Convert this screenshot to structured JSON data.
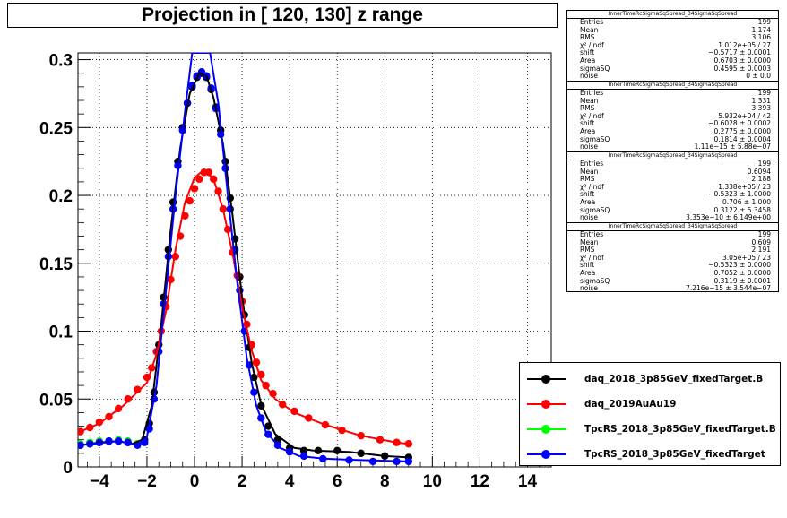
{
  "chart_data": {
    "type": "scatter",
    "title": "Projection in [ 120, 130] z range",
    "xlabel": "",
    "ylabel": "",
    "xlim": [
      -4.9,
      15.0
    ],
    "ylim": [
      0,
      0.305
    ],
    "x_ticks": [
      -4,
      -2,
      0,
      2,
      4,
      6,
      8,
      10,
      12,
      14
    ],
    "x_tick_labels": [
      "−4",
      "−2",
      "0",
      "2",
      "4",
      "6",
      "8",
      "10",
      "12",
      "14"
    ],
    "y_ticks": [
      0,
      0.05,
      0.1,
      0.15,
      0.2,
      0.25,
      0.3
    ],
    "y_tick_labels": [
      "0",
      "0.05",
      "0.1",
      "0.15",
      "0.2",
      "0.25",
      "0.3"
    ],
    "grid": true,
    "legend_position": "bottom-right",
    "series": [
      {
        "name": "daq_2018_3p85GeV_fixedTarget.B",
        "color": "#000000",
        "points": [
          [
            -4.8,
            0.016
          ],
          [
            -4.4,
            0.017
          ],
          [
            -4.0,
            0.018
          ],
          [
            -3.6,
            0.019
          ],
          [
            -3.2,
            0.019
          ],
          [
            -2.8,
            0.018
          ],
          [
            -2.4,
            0.017
          ],
          [
            -2.1,
            0.02
          ],
          [
            -1.9,
            0.032
          ],
          [
            -1.7,
            0.055
          ],
          [
            -1.5,
            0.09
          ],
          [
            -1.3,
            0.125
          ],
          [
            -1.1,
            0.16
          ],
          [
            -0.9,
            0.195
          ],
          [
            -0.7,
            0.225
          ],
          [
            -0.5,
            0.25
          ],
          [
            -0.3,
            0.268
          ],
          [
            -0.1,
            0.28
          ],
          [
            0.1,
            0.287
          ],
          [
            0.3,
            0.29
          ],
          [
            0.5,
            0.287
          ],
          [
            0.7,
            0.278
          ],
          [
            0.9,
            0.265
          ],
          [
            1.1,
            0.248
          ],
          [
            1.3,
            0.225
          ],
          [
            1.5,
            0.198
          ],
          [
            1.7,
            0.168
          ],
          [
            1.9,
            0.14
          ],
          [
            2.1,
            0.112
          ],
          [
            2.3,
            0.088
          ],
          [
            2.5,
            0.066
          ],
          [
            2.8,
            0.045
          ],
          [
            3.1,
            0.03
          ],
          [
            3.5,
            0.02
          ],
          [
            4.0,
            0.014
          ],
          [
            4.6,
            0.012
          ],
          [
            5.2,
            0.012
          ],
          [
            6.0,
            0.012
          ],
          [
            7.0,
            0.01
          ],
          [
            8.0,
            0.008
          ],
          [
            9.0,
            0.007
          ]
        ],
        "fit": [
          [
            -4.8,
            0.016
          ],
          [
            -4.0,
            0.018
          ],
          [
            -3.2,
            0.019
          ],
          [
            -2.6,
            0.017
          ],
          [
            -2.2,
            0.02
          ],
          [
            -1.8,
            0.045
          ],
          [
            -1.4,
            0.105
          ],
          [
            -1.0,
            0.175
          ],
          [
            -0.6,
            0.235
          ],
          [
            -0.2,
            0.275
          ],
          [
            0.2,
            0.29
          ],
          [
            0.5,
            0.288
          ],
          [
            0.8,
            0.272
          ],
          [
            1.2,
            0.238
          ],
          [
            1.6,
            0.185
          ],
          [
            2.0,
            0.125
          ],
          [
            2.4,
            0.077
          ],
          [
            2.8,
            0.046
          ],
          [
            3.4,
            0.024
          ],
          [
            4.2,
            0.014
          ],
          [
            5.0,
            0.012
          ],
          [
            6.5,
            0.011
          ],
          [
            8.0,
            0.008
          ],
          [
            9.0,
            0.007
          ]
        ]
      },
      {
        "name": "daq_2019AuAu19",
        "color": "#ff0000",
        "points": [
          [
            -4.8,
            0.026
          ],
          [
            -4.4,
            0.029
          ],
          [
            -4.0,
            0.033
          ],
          [
            -3.6,
            0.037
          ],
          [
            -3.2,
            0.043
          ],
          [
            -2.8,
            0.05
          ],
          [
            -2.4,
            0.057
          ],
          [
            -2.0,
            0.066
          ],
          [
            -1.8,
            0.073
          ],
          [
            -1.6,
            0.085
          ],
          [
            -1.4,
            0.1
          ],
          [
            -1.2,
            0.118
          ],
          [
            -1.0,
            0.138
          ],
          [
            -0.8,
            0.155
          ],
          [
            -0.6,
            0.17
          ],
          [
            -0.4,
            0.185
          ],
          [
            -0.2,
            0.196
          ],
          [
            0.0,
            0.205
          ],
          [
            0.2,
            0.212
          ],
          [
            0.4,
            0.217
          ],
          [
            0.6,
            0.217
          ],
          [
            0.8,
            0.212
          ],
          [
            1.0,
            0.203
          ],
          [
            1.2,
            0.19
          ],
          [
            1.4,
            0.175
          ],
          [
            1.6,
            0.158
          ],
          [
            1.8,
            0.141
          ],
          [
            2.0,
            0.122
          ],
          [
            2.2,
            0.105
          ],
          [
            2.4,
            0.09
          ],
          [
            2.6,
            0.077
          ],
          [
            2.8,
            0.068
          ],
          [
            3.0,
            0.06
          ],
          [
            3.3,
            0.054
          ],
          [
            3.7,
            0.046
          ],
          [
            4.2,
            0.041
          ],
          [
            4.8,
            0.036
          ],
          [
            5.5,
            0.031
          ],
          [
            6.2,
            0.027
          ],
          [
            7.0,
            0.023
          ],
          [
            7.8,
            0.02
          ],
          [
            8.5,
            0.018
          ],
          [
            9.0,
            0.017
          ]
        ],
        "fit": [
          [
            -4.8,
            0.026
          ],
          [
            -4.0,
            0.032
          ],
          [
            -3.0,
            0.045
          ],
          [
            -2.0,
            0.062
          ],
          [
            -1.6,
            0.083
          ],
          [
            -1.2,
            0.115
          ],
          [
            -0.8,
            0.16
          ],
          [
            -0.4,
            0.195
          ],
          [
            0.0,
            0.213
          ],
          [
            0.4,
            0.219
          ],
          [
            0.8,
            0.212
          ],
          [
            1.2,
            0.19
          ],
          [
            1.6,
            0.157
          ],
          [
            2.0,
            0.118
          ],
          [
            2.4,
            0.086
          ],
          [
            2.8,
            0.064
          ],
          [
            3.4,
            0.05
          ],
          [
            4.2,
            0.04
          ],
          [
            5.5,
            0.031
          ],
          [
            7.0,
            0.023
          ],
          [
            8.5,
            0.018
          ],
          [
            9.0,
            0.017
          ]
        ]
      },
      {
        "name": "TpcRS_2018_3p85GeV_fixedTarget.B",
        "color": "#00ff00",
        "points": [
          [
            -4.8,
            0.017
          ],
          [
            -4.4,
            0.018
          ],
          [
            -4.0,
            0.019
          ],
          [
            -3.6,
            0.019
          ],
          [
            -3.2,
            0.02
          ],
          [
            -2.8,
            0.019
          ],
          [
            -2.4,
            0.017
          ]
        ],
        "fit": []
      },
      {
        "name": "TpcRS_2018_3p85GeV_fixedTarget",
        "color": "#0000ff",
        "points": [
          [
            -4.8,
            0.016
          ],
          [
            -4.4,
            0.017
          ],
          [
            -4.0,
            0.018
          ],
          [
            -3.6,
            0.019
          ],
          [
            -3.2,
            0.019
          ],
          [
            -2.8,
            0.018
          ],
          [
            -2.4,
            0.016
          ],
          [
            -2.1,
            0.018
          ],
          [
            -1.9,
            0.028
          ],
          [
            -1.7,
            0.05
          ],
          [
            -1.5,
            0.085
          ],
          [
            -1.3,
            0.12
          ],
          [
            -1.1,
            0.155
          ],
          [
            -0.9,
            0.19
          ],
          [
            -0.7,
            0.222
          ],
          [
            -0.5,
            0.248
          ],
          [
            -0.3,
            0.268
          ],
          [
            -0.1,
            0.281
          ],
          [
            0.1,
            0.288
          ],
          [
            0.3,
            0.291
          ],
          [
            0.5,
            0.288
          ],
          [
            0.7,
            0.279
          ],
          [
            0.9,
            0.264
          ],
          [
            1.1,
            0.245
          ],
          [
            1.3,
            0.22
          ],
          [
            1.5,
            0.19
          ],
          [
            1.7,
            0.16
          ],
          [
            1.9,
            0.13
          ],
          [
            2.1,
            0.1
          ],
          [
            2.3,
            0.075
          ],
          [
            2.5,
            0.055
          ],
          [
            2.8,
            0.036
          ],
          [
            3.1,
            0.024
          ],
          [
            3.5,
            0.016
          ],
          [
            4.0,
            0.011
          ],
          [
            4.6,
            0.008
          ],
          [
            5.4,
            0.006
          ],
          [
            6.5,
            0.005
          ],
          [
            7.5,
            0.004
          ],
          [
            8.5,
            0.004
          ],
          [
            9.0,
            0.004
          ]
        ],
        "fit": [
          [
            -4.8,
            0.016
          ],
          [
            -3.2,
            0.019
          ],
          [
            -2.4,
            0.016
          ],
          [
            -2.0,
            0.022
          ],
          [
            -1.6,
            0.06
          ],
          [
            -1.2,
            0.13
          ],
          [
            -0.8,
            0.2
          ],
          [
            -0.4,
            0.262
          ],
          [
            -0.1,
            0.305
          ],
          [
            0.65,
            0.305
          ],
          [
            1.0,
            0.268
          ],
          [
            1.4,
            0.2
          ],
          [
            1.8,
            0.135
          ],
          [
            2.2,
            0.08
          ],
          [
            2.6,
            0.045
          ],
          [
            3.0,
            0.026
          ],
          [
            3.6,
            0.014
          ],
          [
            4.4,
            0.008
          ],
          [
            5.5,
            0.006
          ],
          [
            7.0,
            0.005
          ],
          [
            9.0,
            0.004
          ]
        ]
      }
    ]
  },
  "stats_boxes": [
    {
      "title": "InnerTimeRcSigmaSqSpread_34SigmaSqSpread",
      "rows": [
        {
          "label": "Entries",
          "value": "199"
        },
        {
          "label": "Mean",
          "value": "1.174"
        },
        {
          "label": "RMS",
          "value": "3.106"
        },
        {
          "label": "χ² / ndf",
          "value": "1.012e+05 / 27"
        },
        {
          "label": "shift",
          "value": "−0.5717 ± 0.0001"
        },
        {
          "label": "Area",
          "value": "0.6703 ± 0.0000"
        },
        {
          "label": "sigmaSQ",
          "value": "0.4595 ± 0.0003"
        },
        {
          "label": "noise",
          "value": "0 ± 0.0"
        }
      ]
    },
    {
      "title": "InnerTimeRcSigmaSqSpread_34SigmaSqSpread",
      "rows": [
        {
          "label": "Entries",
          "value": "199"
        },
        {
          "label": "Mean",
          "value": "1.331"
        },
        {
          "label": "RMS",
          "value": "3.393"
        },
        {
          "label": "χ² / ndf",
          "value": "5.932e+04 / 42"
        },
        {
          "label": "shift",
          "value": "−0.6028 ± 0.0002"
        },
        {
          "label": "Area",
          "value": "0.2775 ± 0.0000"
        },
        {
          "label": "sigmaSQ",
          "value": "0.1814 ± 0.0004"
        },
        {
          "label": "noise",
          "value": "1.11e−15 ± 5.88e−07"
        }
      ]
    },
    {
      "title": "InnerTimeRcSigmaSqSpread_34SigmaSqSpread",
      "rows": [
        {
          "label": "Entries",
          "value": "199"
        },
        {
          "label": "Mean",
          "value": "0.6094"
        },
        {
          "label": "RMS",
          "value": "2.188"
        },
        {
          "label": "χ² / ndf",
          "value": "1.338e+05 / 23"
        },
        {
          "label": "shift",
          "value": "−0.5323 ± 1.0000"
        },
        {
          "label": "Area",
          "value": "0.706 ± 1.000"
        },
        {
          "label": "sigmaSQ",
          "value": "0.3122 ± 5.3458"
        },
        {
          "label": "noise",
          "value": "3.353e−10 ± 6.149e+00"
        }
      ]
    },
    {
      "title": "InnerTimeRcSigmaSqSpread_34SigmaSqSpread",
      "rows": [
        {
          "label": "Entries",
          "value": "199"
        },
        {
          "label": "Mean",
          "value": "0.609"
        },
        {
          "label": "RMS",
          "value": "2.191"
        },
        {
          "label": "χ² / ndf",
          "value": "3.05e+05 / 23"
        },
        {
          "label": "shift",
          "value": "−0.5323 ± 0.0000"
        },
        {
          "label": "Area",
          "value": "0.7052 ± 0.0000"
        },
        {
          "label": "sigmaSQ",
          "value": "0.3119 ± 0.0001"
        },
        {
          "label": "noise",
          "value": "7.216e−15 ± 3.544e−07"
        }
      ]
    }
  ],
  "colors": {
    "frame": "#000000",
    "grid": "#000000",
    "background": "#ffffff"
  }
}
